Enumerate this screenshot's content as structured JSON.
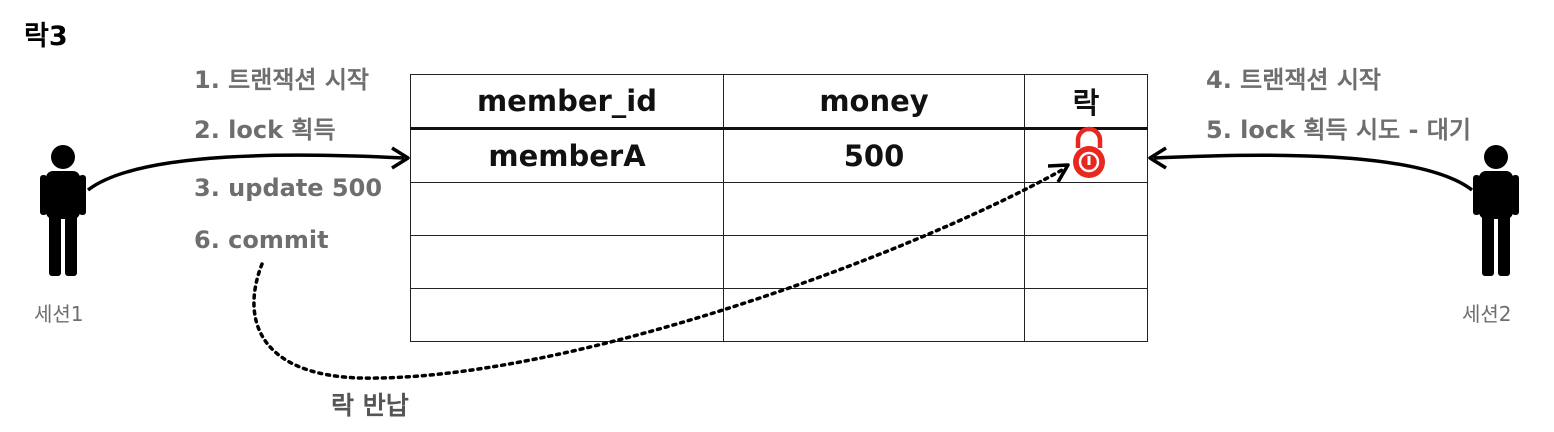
{
  "title": "락3",
  "steps_left": [
    "1. 트랜잭션 시작",
    "2. lock 획득",
    "3. update 500",
    "6. commit"
  ],
  "steps_right": [
    "4. 트랜잭션 시작",
    "5. lock 획득 시도 - 대기"
  ],
  "table": {
    "headers": [
      "member_id",
      "money",
      "락"
    ],
    "rows": [
      [
        "memberA",
        "500",
        ""
      ],
      [
        "",
        "",
        ""
      ],
      [
        "",
        "",
        ""
      ],
      [
        "",
        "",
        ""
      ]
    ]
  },
  "sessions": [
    "세션1",
    "세션2"
  ],
  "lock_return_label": "락 반납",
  "icons": {
    "lock": "lock-icon",
    "person": "person-icon"
  },
  "colors": {
    "lock": "#e8271f",
    "step_text": "#6e6e6e"
  }
}
